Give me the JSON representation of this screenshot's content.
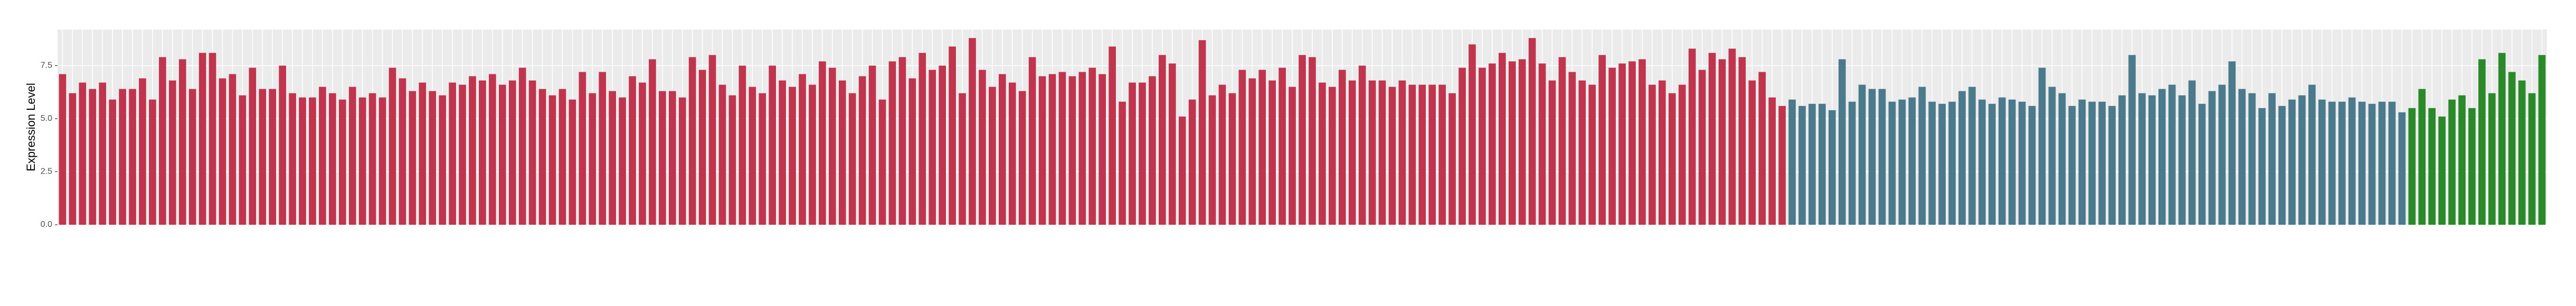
{
  "chart_data": {
    "type": "bar",
    "y_label": "Expression Level",
    "categories": [
      null,
      null,
      null,
      null,
      null,
      null,
      null,
      null,
      null,
      null,
      null,
      null,
      null,
      null,
      null,
      null,
      null,
      null,
      null,
      null,
      null,
      null,
      null,
      null,
      null,
      null,
      null,
      null,
      null,
      null,
      null,
      null,
      null,
      null,
      null,
      null,
      null,
      null,
      null,
      null,
      null,
      null,
      null,
      null,
      null,
      null,
      null,
      null,
      null,
      null,
      null,
      null,
      null,
      null,
      null,
      null,
      null,
      null,
      null,
      null,
      null,
      null,
      null,
      null,
      null,
      null,
      null,
      null,
      null,
      null,
      null,
      null,
      null,
      null,
      null,
      null,
      null,
      null,
      null,
      null,
      null,
      null,
      null,
      null,
      null,
      null,
      null,
      null,
      null,
      null,
      null,
      null,
      null,
      null,
      null,
      null,
      null,
      null,
      null,
      null,
      null,
      null,
      null,
      null,
      null,
      null,
      null,
      null,
      null,
      null,
      null,
      null,
      null,
      null,
      null,
      null,
      null,
      null,
      null,
      null,
      null,
      null,
      null,
      null,
      null,
      null,
      null,
      null,
      null,
      null,
      null,
      null,
      null,
      null,
      null,
      null,
      null,
      null,
      null,
      null,
      null,
      null,
      null,
      null,
      null,
      null,
      null,
      null,
      null,
      null,
      null,
      null,
      null,
      null,
      null,
      null,
      null,
      null,
      null,
      null,
      null,
      null,
      null,
      null,
      null,
      null,
      null,
      null,
      null,
      null,
      null,
      null,
      null,
      null,
      null,
      null,
      null,
      null,
      null,
      null,
      null,
      null,
      null,
      null,
      null,
      null,
      null,
      null,
      null,
      null,
      null,
      null,
      null,
      null,
      null,
      null,
      null,
      null,
      null,
      null,
      null,
      null,
      null,
      null,
      null,
      null,
      null,
      null,
      null,
      null,
      null,
      null,
      null,
      null,
      null,
      null,
      null,
      null,
      null,
      null,
      null,
      null,
      null,
      null,
      null,
      null,
      null,
      null,
      null,
      null,
      null,
      null,
      null,
      null,
      null,
      null,
      null,
      null,
      null,
      null,
      null,
      null,
      null,
      null,
      null,
      null,
      null,
      null,
      null
    ],
    "values": [
      7.1,
      6.2,
      6.7,
      6.4,
      6.7,
      5.9,
      6.4,
      6.4,
      6.9,
      5.9,
      7.9,
      6.8,
      7.8,
      6.4,
      8.1,
      8.1,
      6.9,
      7.1,
      6.1,
      7.4,
      6.4,
      6.4,
      7.5,
      6.2,
      6.0,
      6.0,
      6.5,
      6.2,
      5.9,
      6.5,
      6.0,
      6.2,
      6.0,
      7.4,
      6.9,
      6.3,
      6.7,
      6.3,
      6.1,
      6.7,
      6.6,
      7.0,
      6.8,
      7.1,
      6.6,
      6.8,
      7.4,
      6.8,
      6.4,
      6.1,
      6.4,
      5.9,
      7.2,
      6.2,
      7.2,
      6.3,
      6.0,
      7.0,
      6.7,
      7.8,
      6.3,
      6.3,
      6.0,
      7.9,
      7.3,
      8.0,
      6.6,
      6.1,
      7.5,
      6.5,
      6.2,
      7.5,
      6.8,
      6.5,
      7.1,
      6.6,
      7.7,
      7.4,
      6.8,
      6.2,
      7.0,
      7.5,
      5.9,
      7.7,
      7.9,
      6.9,
      8.1,
      7.3,
      7.5,
      8.4,
      6.2,
      8.8,
      7.3,
      6.5,
      7.1,
      6.7,
      6.3,
      7.9,
      7.0,
      7.1,
      7.2,
      7.0,
      7.2,
      7.4,
      7.1,
      8.4,
      5.8,
      6.7,
      6.7,
      7.0,
      8.0,
      7.6,
      5.1,
      5.9,
      8.7,
      6.1,
      6.6,
      6.2,
      7.3,
      6.9,
      7.3,
      6.8,
      7.4,
      6.5,
      8.0,
      7.9,
      6.7,
      6.5,
      7.3,
      6.8,
      7.5,
      6.8,
      6.8,
      6.5,
      6.8,
      6.6,
      6.6,
      6.6,
      6.6,
      6.2,
      7.4,
      8.5,
      7.4,
      7.6,
      8.1,
      7.7,
      7.8,
      8.8,
      7.6,
      6.8,
      7.9,
      7.2,
      6.8,
      6.6,
      8.0,
      7.4,
      7.6,
      7.7,
      7.8,
      6.6,
      6.8,
      6.2,
      6.6,
      8.3,
      7.3,
      8.1,
      7.8,
      8.3,
      7.9,
      6.8,
      7.2,
      6.0,
      5.6,
      5.9,
      5.6,
      5.7,
      5.7,
      5.4,
      7.8,
      5.8,
      6.6,
      6.4,
      6.4,
      5.8,
      5.9,
      6.0,
      6.5,
      5.8,
      5.7,
      5.8,
      6.3,
      6.5,
      5.9,
      5.7,
      6.0,
      5.9,
      5.8,
      5.6,
      7.4,
      6.5,
      6.2,
      5.6,
      5.9,
      5.8,
      5.8,
      5.6,
      6.1,
      8.0,
      6.2,
      6.1,
      6.4,
      6.6,
      6.1,
      6.8,
      5.7,
      6.3,
      6.6,
      7.7,
      6.4,
      6.2,
      5.5,
      6.2,
      5.6,
      5.9,
      6.1,
      6.6,
      5.9,
      5.8,
      5.8,
      6.0,
      5.8,
      5.7,
      5.8,
      5.8,
      5.3,
      5.5,
      6.4,
      5.5,
      5.1,
      5.9,
      6.1,
      5.5,
      7.8,
      6.2,
      8.1,
      7.2,
      6.8,
      6.2,
      8.0
    ],
    "colors": [
      "#c0344d",
      "#c0344d",
      "#c0344d",
      "#c0344d",
      "#c0344d",
      "#c0344d",
      "#c0344d",
      "#c0344d",
      "#c0344d",
      "#c0344d",
      "#c0344d",
      "#c0344d",
      "#c0344d",
      "#c0344d",
      "#c0344d",
      "#c0344d",
      "#c0344d",
      "#c0344d",
      "#c0344d",
      "#c0344d",
      "#c0344d",
      "#c0344d",
      "#c0344d",
      "#c0344d",
      "#c0344d",
      "#c0344d",
      "#c0344d",
      "#c0344d",
      "#c0344d",
      "#c0344d",
      "#c0344d",
      "#c0344d",
      "#c0344d",
      "#c0344d",
      "#c0344d",
      "#c0344d",
      "#c0344d",
      "#c0344d",
      "#c0344d",
      "#c0344d",
      "#c0344d",
      "#c0344d",
      "#c0344d",
      "#c0344d",
      "#c0344d",
      "#c0344d",
      "#c0344d",
      "#c0344d",
      "#c0344d",
      "#c0344d",
      "#c0344d",
      "#c0344d",
      "#c0344d",
      "#c0344d",
      "#c0344d",
      "#c0344d",
      "#c0344d",
      "#c0344d",
      "#c0344d",
      "#c0344d",
      "#c0344d",
      "#c0344d",
      "#c0344d",
      "#c0344d",
      "#c0344d",
      "#c0344d",
      "#c0344d",
      "#c0344d",
      "#c0344d",
      "#c0344d",
      "#c0344d",
      "#c0344d",
      "#c0344d",
      "#c0344d",
      "#c0344d",
      "#c0344d",
      "#c0344d",
      "#c0344d",
      "#c0344d",
      "#c0344d",
      "#c0344d",
      "#c0344d",
      "#c0344d",
      "#c0344d",
      "#c0344d",
      "#c0344d",
      "#c0344d",
      "#c0344d",
      "#c0344d",
      "#c0344d",
      "#c0344d",
      "#c0344d",
      "#c0344d",
      "#c0344d",
      "#c0344d",
      "#c0344d",
      "#c0344d",
      "#c0344d",
      "#c0344d",
      "#c0344d",
      "#c0344d",
      "#c0344d",
      "#c0344d",
      "#c0344d",
      "#c0344d",
      "#c0344d",
      "#c0344d",
      "#c0344d",
      "#c0344d",
      "#c0344d",
      "#c0344d",
      "#c0344d",
      "#c0344d",
      "#c0344d",
      "#c0344d",
      "#c0344d",
      "#c0344d",
      "#c0344d",
      "#c0344d",
      "#c0344d",
      "#c0344d",
      "#c0344d",
      "#c0344d",
      "#c0344d",
      "#c0344d",
      "#c0344d",
      "#c0344d",
      "#c0344d",
      "#c0344d",
      "#c0344d",
      "#c0344d",
      "#c0344d",
      "#c0344d",
      "#c0344d",
      "#c0344d",
      "#c0344d",
      "#c0344d",
      "#c0344d",
      "#c0344d",
      "#c0344d",
      "#c0344d",
      "#c0344d",
      "#c0344d",
      "#c0344d",
      "#c0344d",
      "#c0344d",
      "#c0344d",
      "#c0344d",
      "#c0344d",
      "#c0344d",
      "#c0344d",
      "#c0344d",
      "#c0344d",
      "#c0344d",
      "#c0344d",
      "#c0344d",
      "#c0344d",
      "#c0344d",
      "#c0344d",
      "#c0344d",
      "#c0344d",
      "#c0344d",
      "#c0344d",
      "#c0344d",
      "#c0344d",
      "#c0344d",
      "#c0344d",
      "#c0344d",
      "#c0344d",
      "#c0344d",
      "#c0344d",
      "#c0344d",
      "#c0344d",
      "#4a7a8c",
      "#4a7a8c",
      "#4a7a8c",
      "#4a7a8c",
      "#4a7a8c",
      "#4a7a8c",
      "#4a7a8c",
      "#4a7a8c",
      "#4a7a8c",
      "#4a7a8c",
      "#4a7a8c",
      "#4a7a8c",
      "#4a7a8c",
      "#4a7a8c",
      "#4a7a8c",
      "#4a7a8c",
      "#4a7a8c",
      "#4a7a8c",
      "#4a7a8c",
      "#4a7a8c",
      "#4a7a8c",
      "#4a7a8c",
      "#4a7a8c",
      "#4a7a8c",
      "#4a7a8c",
      "#4a7a8c",
      "#4a7a8c",
      "#4a7a8c",
      "#4a7a8c",
      "#4a7a8c",
      "#4a7a8c",
      "#4a7a8c",
      "#4a7a8c",
      "#4a7a8c",
      "#4a7a8c",
      "#4a7a8c",
      "#4a7a8c",
      "#4a7a8c",
      "#4a7a8c",
      "#4a7a8c",
      "#4a7a8c",
      "#4a7a8c",
      "#4a7a8c",
      "#4a7a8c",
      "#4a7a8c",
      "#4a7a8c",
      "#4a7a8c",
      "#4a7a8c",
      "#4a7a8c",
      "#4a7a8c",
      "#4a7a8c",
      "#4a7a8c",
      "#4a7a8c",
      "#4a7a8c",
      "#4a7a8c",
      "#4a7a8c",
      "#4a7a8c",
      "#4a7a8c",
      "#4a7a8c",
      "#4a7a8c",
      "#4a7a8c",
      "#4a7a8c",
      "#2a8a2a",
      "#2a8a2a",
      "#2a8a2a",
      "#2a8a2a",
      "#2a8a2a",
      "#2a8a2a",
      "#2a8a2a",
      "#2a8a2a",
      "#2a8a2a",
      "#2a8a2a",
      "#2a8a2a",
      "#2a8a2a",
      "#2a8a2a",
      "#2a8a2a",
      "#2a8a2a",
      "#2a8a2a"
    ],
    "ylim": [
      0,
      9.2
    ],
    "yticks": [
      {
        "value": 0,
        "label": "0.0"
      },
      2.5,
      {
        "value": 5,
        "label": "5.0"
      },
      7.5
    ],
    "grid": true,
    "panel_color": "#ebebeb"
  }
}
